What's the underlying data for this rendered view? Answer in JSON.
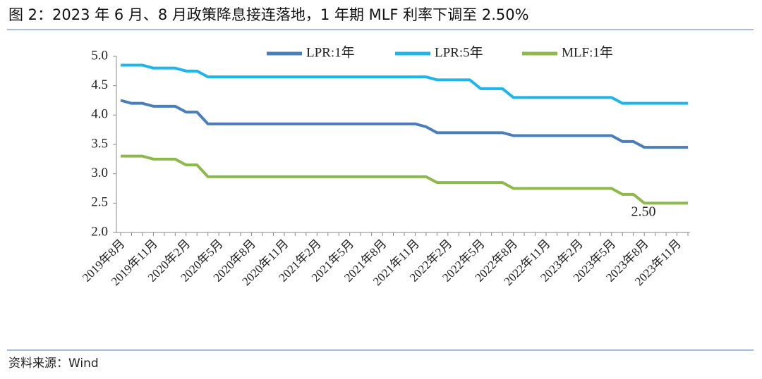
{
  "chart_data": {
    "type": "line",
    "title": "图 2：2023 年 6 月、8 月政策降息接连落地，1 年期 MLF 利率下调至 2.50%",
    "source": "资料来源：Wind",
    "annotation": "2.50",
    "categories": [
      "2019年8月",
      null,
      null,
      "2019年11月",
      null,
      null,
      "2020年2月",
      null,
      null,
      "2020年5月",
      null,
      null,
      "2020年8月",
      null,
      null,
      "2020年11月",
      null,
      null,
      "2021年2月",
      null,
      null,
      "2021年5月",
      null,
      null,
      "2021年8月",
      null,
      null,
      "2021年11月",
      null,
      null,
      "2022年2月",
      null,
      null,
      "2022年5月",
      null,
      null,
      "2022年8月",
      null,
      null,
      "2022年11月",
      null,
      null,
      "2023年2月",
      null,
      null,
      "2023年5月",
      null,
      null,
      "2023年8月",
      null,
      null,
      "2023年11月",
      null
    ],
    "series": [
      {
        "name": "LPR:1年",
        "color": "#4a7ebb",
        "values": [
          4.25,
          4.2,
          4.2,
          4.15,
          4.15,
          4.15,
          4.05,
          4.05,
          3.85,
          3.85,
          3.85,
          3.85,
          3.85,
          3.85,
          3.85,
          3.85,
          3.85,
          3.85,
          3.85,
          3.85,
          3.85,
          3.85,
          3.85,
          3.85,
          3.85,
          3.85,
          3.85,
          3.85,
          3.8,
          3.7,
          3.7,
          3.7,
          3.7,
          3.7,
          3.7,
          3.7,
          3.65,
          3.65,
          3.65,
          3.65,
          3.65,
          3.65,
          3.65,
          3.65,
          3.65,
          3.65,
          3.55,
          3.55,
          3.45,
          3.45,
          3.45,
          3.45,
          3.45
        ]
      },
      {
        "name": "LPR:5年",
        "color": "#1fb4ea",
        "values": [
          4.85,
          4.85,
          4.85,
          4.8,
          4.8,
          4.8,
          4.75,
          4.75,
          4.65,
          4.65,
          4.65,
          4.65,
          4.65,
          4.65,
          4.65,
          4.65,
          4.65,
          4.65,
          4.65,
          4.65,
          4.65,
          4.65,
          4.65,
          4.65,
          4.65,
          4.65,
          4.65,
          4.65,
          4.65,
          4.6,
          4.6,
          4.6,
          4.6,
          4.45,
          4.45,
          4.45,
          4.3,
          4.3,
          4.3,
          4.3,
          4.3,
          4.3,
          4.3,
          4.3,
          4.3,
          4.3,
          4.2,
          4.2,
          4.2,
          4.2,
          4.2,
          4.2,
          4.2
        ]
      },
      {
        "name": "MLF:1年",
        "color": "#8db94b",
        "values": [
          3.3,
          3.3,
          3.3,
          3.25,
          3.25,
          3.25,
          3.15,
          3.15,
          2.95,
          2.95,
          2.95,
          2.95,
          2.95,
          2.95,
          2.95,
          2.95,
          2.95,
          2.95,
          2.95,
          2.95,
          2.95,
          2.95,
          2.95,
          2.95,
          2.95,
          2.95,
          2.95,
          2.95,
          2.95,
          2.85,
          2.85,
          2.85,
          2.85,
          2.85,
          2.85,
          2.85,
          2.75,
          2.75,
          2.75,
          2.75,
          2.75,
          2.75,
          2.75,
          2.75,
          2.75,
          2.75,
          2.65,
          2.65,
          2.5,
          2.5,
          2.5,
          2.5,
          2.5
        ]
      }
    ],
    "ylim": [
      2,
      5
    ],
    "yticks": [
      {
        "value": 2,
        "label": "2.0"
      },
      2.5,
      {
        "value": 3,
        "label": "3.0"
      },
      3.5,
      {
        "value": 4,
        "label": "4.0"
      },
      4.5,
      {
        "value": 5,
        "label": "5.0"
      }
    ],
    "grid": false
  }
}
